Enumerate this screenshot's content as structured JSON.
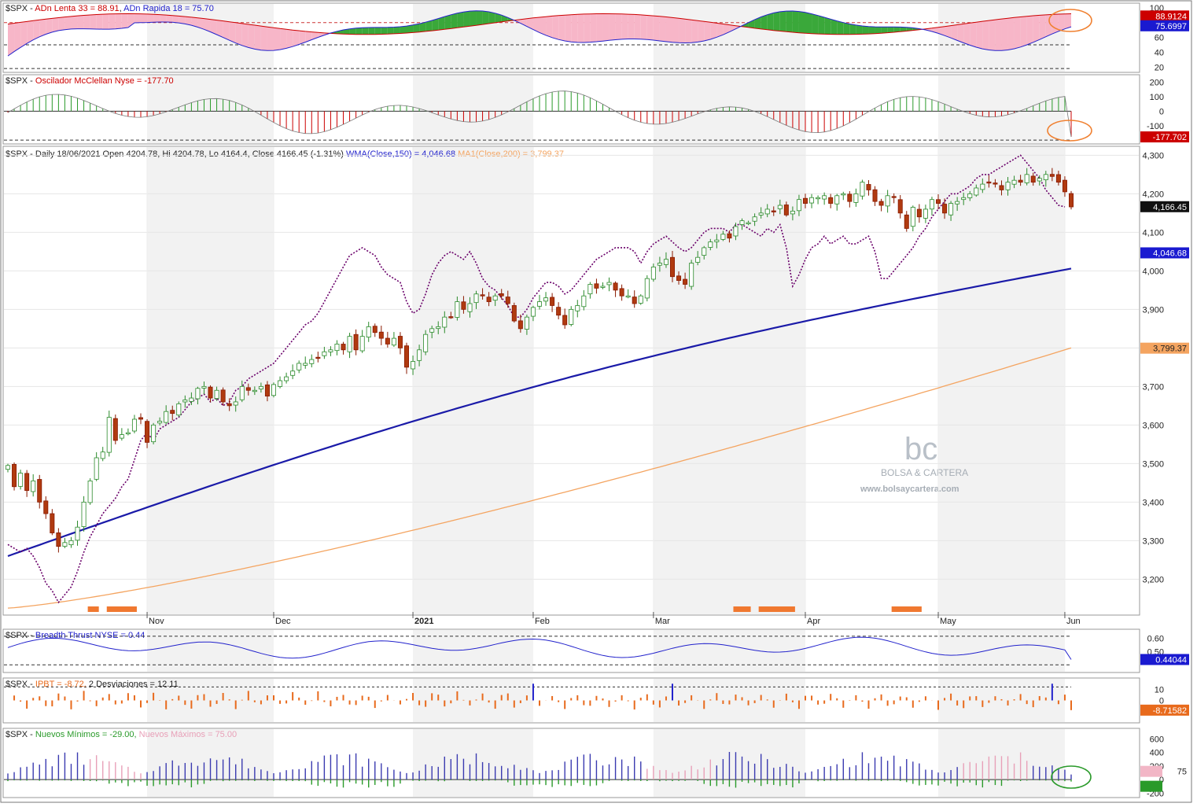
{
  "chart_data": {
    "type": "financial-multipanel",
    "months": [
      {
        "label": "Nov",
        "idx": 22
      },
      {
        "label": "Dec",
        "idx": 42
      },
      {
        "label": "2021",
        "idx": 64
      },
      {
        "label": "Feb",
        "idx": 83
      },
      {
        "label": "Mar",
        "idx": 102
      },
      {
        "label": "Apr",
        "idx": 126
      },
      {
        "label": "May",
        "idx": 147
      },
      {
        "label": "Jun",
        "idx": 167
      }
    ],
    "panels": {
      "adn": {
        "title_prefix": "$SPX - ",
        "series_a": "ADn Lenta 33 = 88.91",
        "series_b": "ADn Rapida 18 = 75.70",
        "ticks": [
          "100",
          "80",
          "60",
          "40",
          "20"
        ],
        "ylim": [
          15,
          102
        ],
        "tag_a": "88.9124",
        "tag_b": "75.6997",
        "colors": {
          "a": "#cc0000",
          "b": "#2222cc"
        }
      },
      "mcclellan": {
        "title_prefix": "$SPX - ",
        "series": "Oscilador McClellan Nyse = -177.70",
        "ticks": [
          "200",
          "100",
          "0",
          "-100"
        ],
        "ylim": [
          -210,
          230
        ],
        "tag": "-177.702",
        "color": "#cc0000"
      },
      "main": {
        "title": "$SPX - Daily 18/06/2021 Open 4204.78, Hi 4204.78, Lo 4164.4, Close 4166.45 (-1.31%)",
        "wma_label": "WMA(Close,150) = 4,046.68",
        "ma_label": "MA1(Close,200) = 3,799.37",
        "ticks": [
          "4,300",
          "4,200",
          "4,100",
          "4,000",
          "3,900",
          "3,800",
          "3,700",
          "3,600",
          "3,500",
          "3,400",
          "3,300",
          "3,200"
        ],
        "ylim": [
          3115,
          4315
        ],
        "close_tag": "4,166.45",
        "wma_tag": "4,046.68",
        "ma_tag": "3,799.37",
        "candles": [
          3495,
          3440,
          3475,
          3430,
          3455,
          3400,
          3370,
          3320,
          3285,
          3295,
          3300,
          3335,
          3400,
          3455,
          3515,
          3530,
          3620,
          3560,
          3575,
          3580,
          3615,
          3615,
          3555,
          3600,
          3610,
          3635,
          3630,
          3655,
          3665,
          3670,
          3695,
          3700,
          3670,
          3690,
          3660,
          3650,
          3660,
          3700,
          3690,
          3690,
          3700,
          3675,
          3705,
          3715,
          3725,
          3740,
          3760,
          3760,
          3770,
          3775,
          3790,
          3795,
          3810,
          3795,
          3830,
          3795,
          3830,
          3855,
          3840,
          3825,
          3810,
          3825,
          3800,
          3750,
          3765,
          3795,
          3835,
          3850,
          3855,
          3880,
          3880,
          3920,
          3900,
          3915,
          3940,
          3935,
          3920,
          3935,
          3935,
          3915,
          3870,
          3850,
          3880,
          3905,
          3920,
          3930,
          3910,
          3885,
          3860,
          3900,
          3910,
          3935,
          3965,
          3955,
          3960,
          3970,
          3950,
          3935,
          3935,
          3915,
          3935,
          3980,
          4010,
          4020,
          4030,
          3985,
          3975,
          3965,
          4020,
          4035,
          4060,
          4075,
          4080,
          4095,
          4085,
          4115,
          4130,
          4125,
          4140,
          4150,
          4160,
          4155,
          4170,
          4145,
          4155,
          4185,
          4175,
          4190,
          4190,
          4195,
          4175,
          4195,
          4200,
          4180,
          4200,
          4230,
          4210,
          4180,
          4170,
          4195,
          4190,
          4150,
          4110,
          4165,
          4140,
          4160,
          4185,
          4175,
          4150,
          4175,
          4180,
          4190,
          4200,
          4215,
          4225,
          4230,
          4225,
          4210,
          4230,
          4235,
          4230,
          4250,
          4230,
          4240,
          4250,
          4245,
          4230,
          4205,
          4166
        ],
        "oscillator_dotted": [
          3290,
          3280,
          3270,
          3280,
          3260,
          3230,
          3190,
          3170,
          3140,
          3160,
          3180,
          3220,
          3270,
          3310,
          3340,
          3370,
          3390,
          3410,
          3440,
          3460,
          3510,
          3560,
          3580,
          3560,
          3590,
          3600,
          3610,
          3620,
          3640,
          3660,
          3670,
          3680,
          3660,
          3670,
          3650,
          3660,
          3690,
          3700,
          3720,
          3730,
          3740,
          3750,
          3760,
          3780,
          3800,
          3820,
          3840,
          3860,
          3870,
          3890,
          3920,
          3950,
          3980,
          4010,
          4040,
          4050,
          4060,
          4050,
          4040,
          4010,
          3990,
          3980,
          3970,
          3920,
          3890,
          3900,
          3940,
          3990,
          4020,
          4040,
          4050,
          4040,
          4030,
          4050,
          4020,
          3980,
          3960,
          3950,
          3930,
          3910,
          3880,
          3880,
          3900,
          3930,
          3950,
          3970,
          3970,
          3960,
          3940,
          3950,
          3970,
          3990,
          4010,
          4030,
          4040,
          4050,
          4060,
          4060,
          4060,
          4050,
          4020,
          4050,
          4070,
          4080,
          4090,
          4075,
          4060,
          4050,
          4060,
          4080,
          4100,
          4110,
          4110,
          4110,
          4100,
          4120,
          4120,
          4110,
          4100,
          4090,
          4110,
          4100,
          4120,
          4060,
          3960,
          3990,
          4030,
          4060,
          4070,
          4090,
          4070,
          4080,
          4090,
          4070,
          4070,
          4080,
          4090,
          4050,
          3980,
          3980,
          4000,
          4020,
          4040,
          4060,
          4090,
          4110,
          4140,
          4160,
          4180,
          4200,
          4200,
          4210,
          4220,
          4240,
          4250,
          4250,
          4260,
          4270,
          4280,
          4290,
          4300,
          4280,
          4260,
          4240,
          4210,
          4190,
          4170,
          4166
        ]
      },
      "breadth": {
        "title_prefix": "$SPX - ",
        "series": "Breadth Thrust NYSE = 0.44",
        "ticks": [
          "0.60",
          "0.50"
        ],
        "ylim": [
          0.36,
          0.65
        ],
        "tag": "0.44044",
        "color": "#2222cc"
      },
      "ipbt": {
        "title_prefix": "$SPX - ",
        "series": "IPBT = -8.72,",
        "extra": "2 Desviaciones = 12.11",
        "ticks": [
          "10",
          "0",
          "-10"
        ],
        "ylim": [
          -18,
          18
        ],
        "tag": "-8.71582",
        "color": "#e86a1c"
      },
      "nuevos": {
        "title_prefix": "$SPX - ",
        "series_a": "Nuevos Mínimos = -29.00,",
        "series_b": "Nuevos Máximos = 75.00",
        "ticks": [
          "600",
          "400",
          "200",
          "0",
          "-200"
        ],
        "ylim": [
          -230,
          720
        ],
        "tag_max": "75",
        "tag_min": "-29",
        "colors": {
          "min": "#2a9a2a",
          "max": "#e8a0b8",
          "bar": "#3a3ab0"
        }
      }
    },
    "watermark": {
      "logo": "bc",
      "name": "BOLSA & CARTERA",
      "url": "www.bolsaycartera.com"
    }
  }
}
